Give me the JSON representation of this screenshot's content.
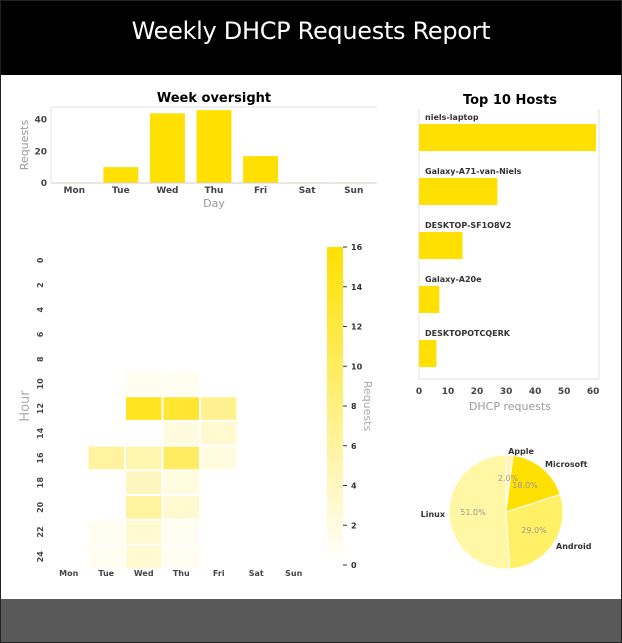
{
  "header": {
    "title": "Weekly DHCP Requests Report"
  },
  "colors": {
    "accent": "#ffe000",
    "header_bg": "#000000",
    "footer_bg": "#595959"
  },
  "chart_data": [
    {
      "type": "bar",
      "title": "Week oversight",
      "xlabel": "Day",
      "ylabel": "Requests",
      "categories": [
        "Mon",
        "Tue",
        "Wed",
        "Thu",
        "Fri",
        "Sat",
        "Sun"
      ],
      "values": [
        0,
        10,
        44,
        46,
        17,
        0,
        0
      ],
      "yticks": [
        0,
        20,
        40
      ],
      "ylim": [
        0,
        48
      ]
    },
    {
      "type": "heatmap",
      "title": "",
      "xlabel": "",
      "ylabel": "Hour",
      "x_categories": [
        "Mon",
        "Tue",
        "Wed",
        "Thu",
        "Fri",
        "Sat",
        "Sun"
      ],
      "y_tick_labels": [
        "0",
        "2",
        "4",
        "6",
        "8",
        "10",
        "12",
        "14",
        "16",
        "18",
        "20",
        "22",
        "24"
      ],
      "rows": 13,
      "colorbar": {
        "label": "Requests",
        "min": 0,
        "max": 16,
        "ticks": [
          0,
          2,
          4,
          6,
          8,
          10,
          12,
          14,
          16
        ]
      },
      "cells": [
        {
          "day": "Wed",
          "row": 5,
          "value": 1
        },
        {
          "day": "Thu",
          "row": 5,
          "value": 1
        },
        {
          "day": "Wed",
          "row": 6,
          "value": 14
        },
        {
          "day": "Thu",
          "row": 6,
          "value": 13
        },
        {
          "day": "Fri",
          "row": 6,
          "value": 7
        },
        {
          "day": "Thu",
          "row": 7,
          "value": 2
        },
        {
          "day": "Fri",
          "row": 7,
          "value": 3
        },
        {
          "day": "Tue",
          "row": 8,
          "value": 6
        },
        {
          "day": "Wed",
          "row": 8,
          "value": 5
        },
        {
          "day": "Thu",
          "row": 8,
          "value": 10
        },
        {
          "day": "Fri",
          "row": 8,
          "value": 2
        },
        {
          "day": "Wed",
          "row": 9,
          "value": 4
        },
        {
          "day": "Thu",
          "row": 9,
          "value": 2
        },
        {
          "day": "Wed",
          "row": 10,
          "value": 6
        },
        {
          "day": "Thu",
          "row": 10,
          "value": 3
        },
        {
          "day": "Tue",
          "row": 11,
          "value": 1
        },
        {
          "day": "Wed",
          "row": 11,
          "value": 3
        },
        {
          "day": "Thu",
          "row": 11,
          "value": 1
        },
        {
          "day": "Tue",
          "row": 12,
          "value": 1
        },
        {
          "day": "Wed",
          "row": 12,
          "value": 3
        },
        {
          "day": "Thu",
          "row": 12,
          "value": 1
        }
      ]
    },
    {
      "type": "bar",
      "orientation": "horizontal",
      "title": "Top 10 Hosts",
      "xlabel": "DHCP requests",
      "categories": [
        "niels-laptop",
        "Galaxy-A71-van-Niels",
        "DESKTOP-SF1O8V2",
        "Galaxy-A20e",
        "DESKTOPOTCQERK"
      ],
      "values": [
        61,
        27,
        15,
        7,
        6
      ],
      "xticks": [
        0,
        10,
        20,
        30,
        40,
        50,
        60
      ],
      "xlim": [
        0,
        62
      ]
    },
    {
      "type": "pie",
      "title": "",
      "labels": [
        "Apple",
        "Microsoft",
        "Android",
        "Linux"
      ],
      "values": [
        2.0,
        18.0,
        29.0,
        51.0
      ],
      "pct_labels": [
        "2.0%",
        "18.0%",
        "29.0%",
        "51.0%"
      ]
    }
  ]
}
